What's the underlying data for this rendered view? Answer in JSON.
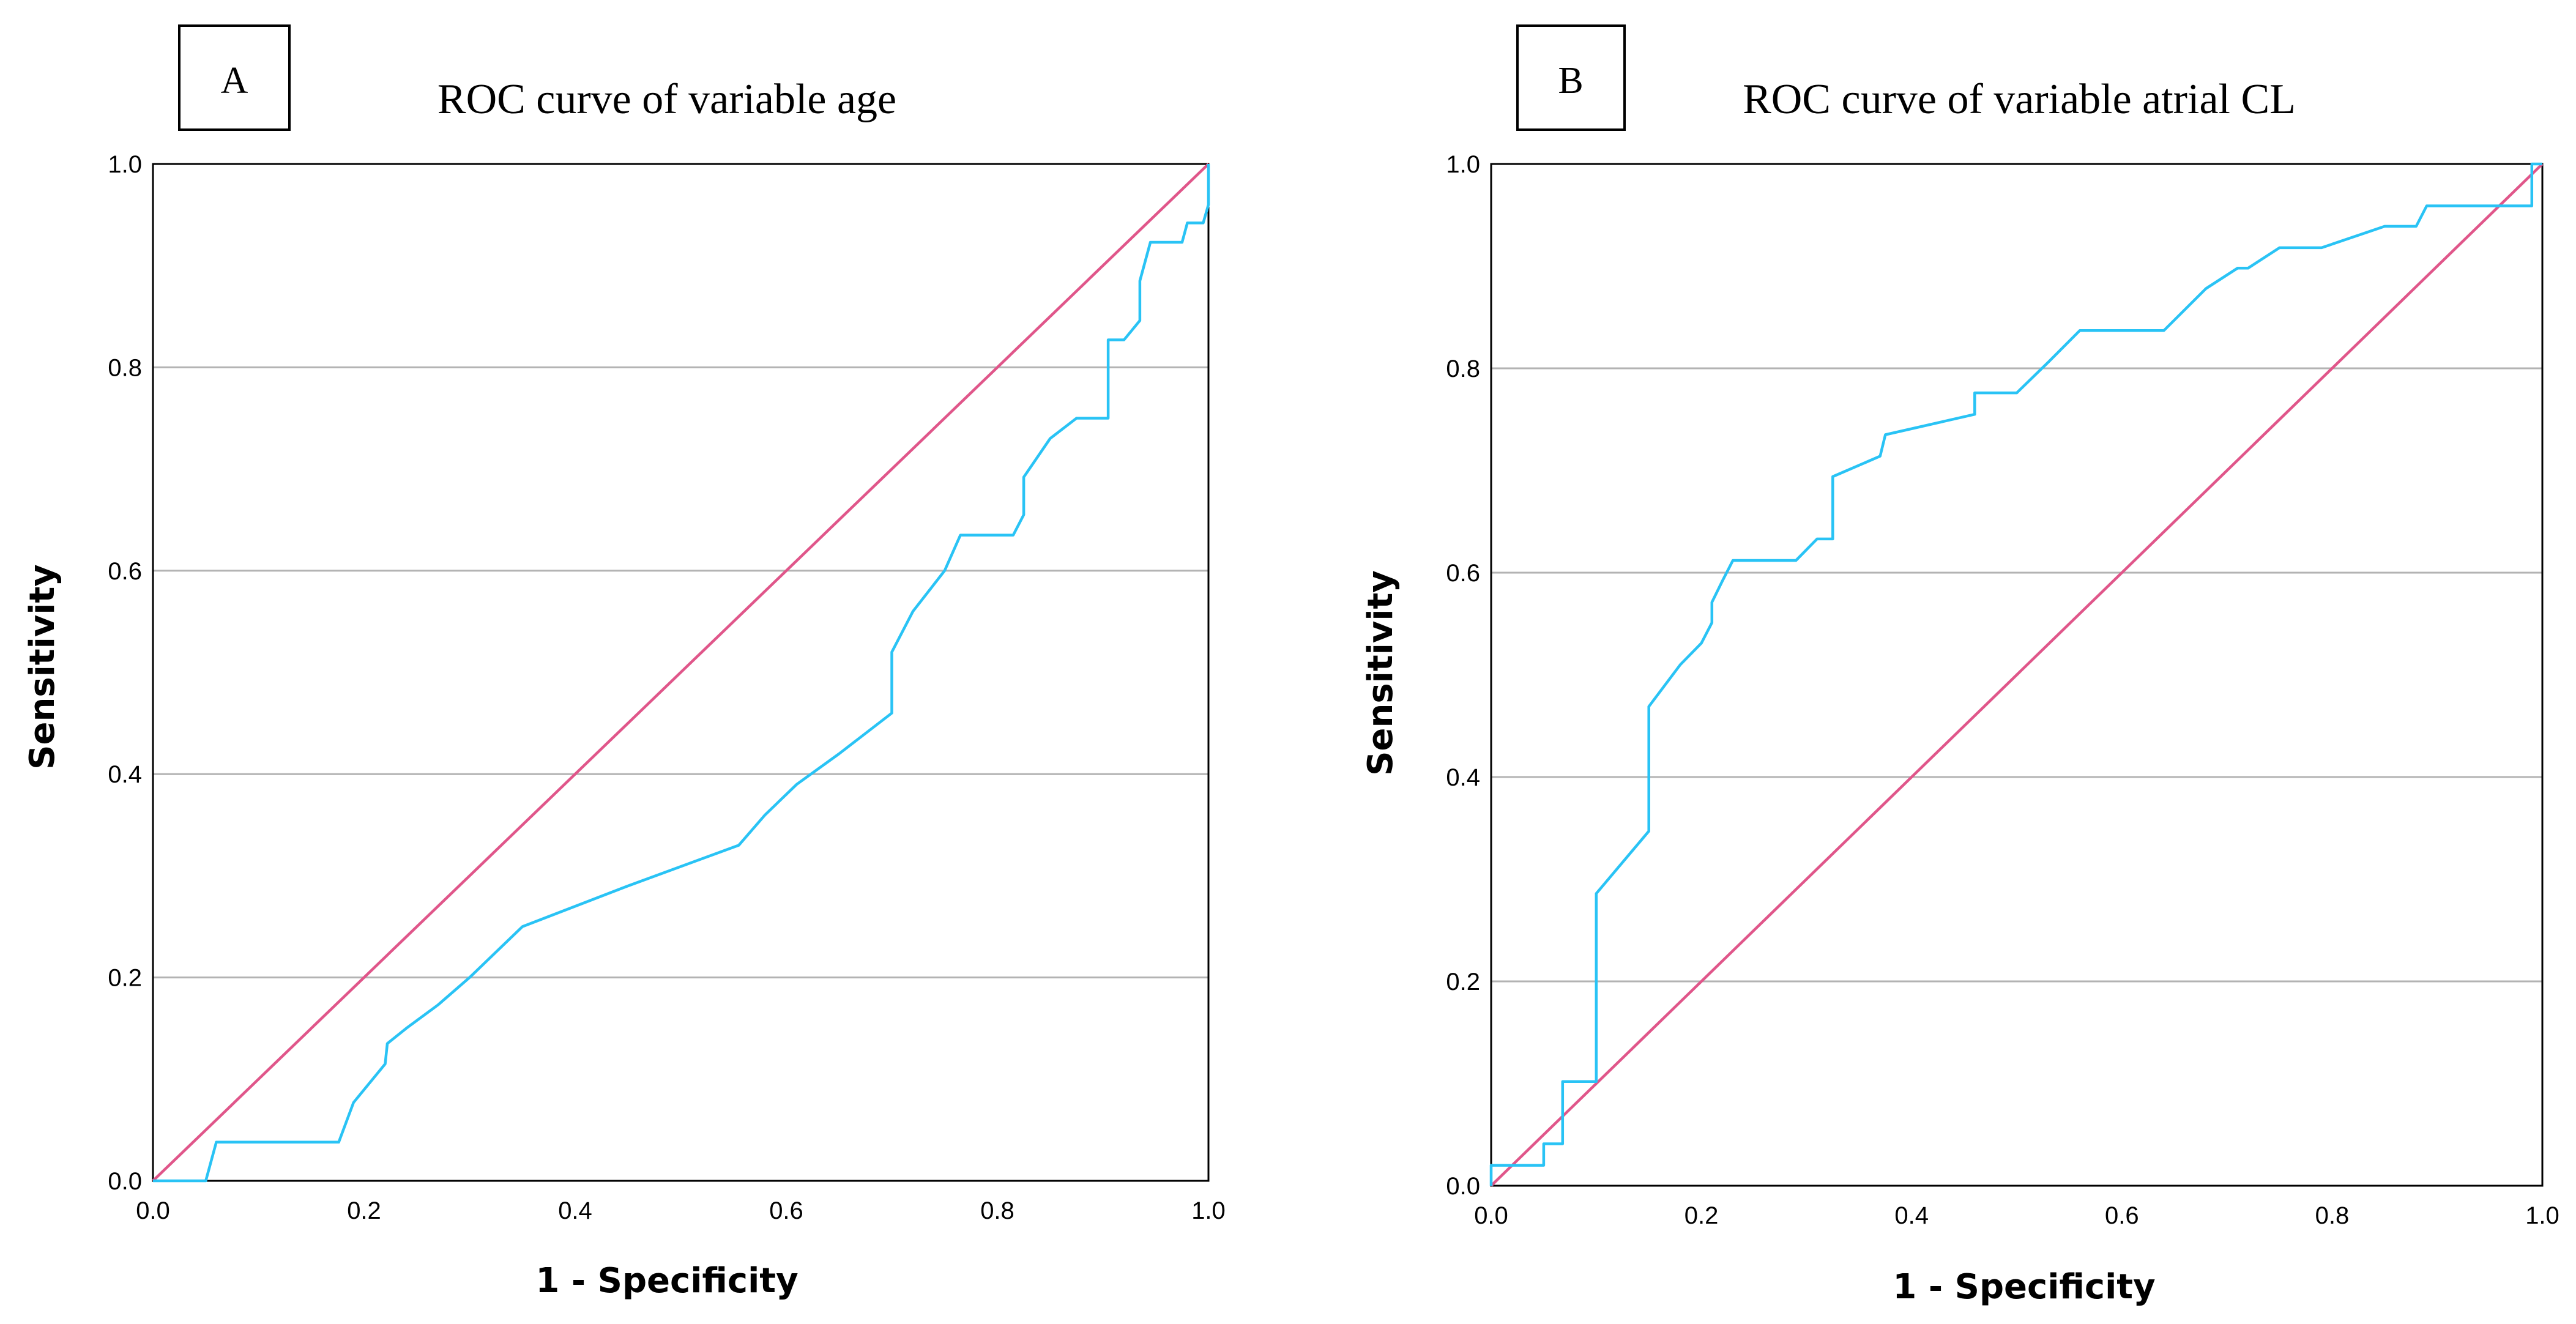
{
  "colors": {
    "roc": "#29c3f5",
    "reference": "#e0568a",
    "grid": "#b3b3b3"
  },
  "chart_data": [
    {
      "type": "line",
      "panel_label": "A",
      "title": "ROC curve of variable age",
      "xlabel": "1 - Specificity",
      "ylabel": "Sensitivity",
      "xlim": [
        0,
        1
      ],
      "ylim": [
        0,
        1
      ],
      "x_ticks": [
        "0.0",
        "0.2",
        "0.4",
        "0.6",
        "0.8",
        "1.0"
      ],
      "y_ticks": [
        "0.0",
        "0.2",
        "0.4",
        "0.6",
        "0.8",
        "1.0"
      ],
      "grid": "horizontal",
      "series": [
        {
          "name": "ROC curve",
          "points": [
            [
              0,
              0
            ],
            [
              0.05,
              0
            ],
            [
              0.06,
              0.038
            ],
            [
              0.176,
              0.038
            ],
            [
              0.19,
              0.077
            ],
            [
              0.22,
              0.115
            ],
            [
              0.222,
              0.135
            ],
            [
              0.24,
              0.15
            ],
            [
              0.27,
              0.173
            ],
            [
              0.3,
              0.2
            ],
            [
              0.32,
              0.22
            ],
            [
              0.35,
              0.25
            ],
            [
              0.45,
              0.29
            ],
            [
              0.555,
              0.33
            ],
            [
              0.58,
              0.36
            ],
            [
              0.61,
              0.39
            ],
            [
              0.65,
              0.42
            ],
            [
              0.7,
              0.46
            ],
            [
              0.7,
              0.52
            ],
            [
              0.72,
              0.56
            ],
            [
              0.75,
              0.6
            ],
            [
              0.765,
              0.635
            ],
            [
              0.815,
              0.635
            ],
            [
              0.825,
              0.655
            ],
            [
              0.825,
              0.692
            ],
            [
              0.85,
              0.73
            ],
            [
              0.875,
              0.75
            ],
            [
              0.905,
              0.75
            ],
            [
              0.905,
              0.827
            ],
            [
              0.92,
              0.827
            ],
            [
              0.935,
              0.846
            ],
            [
              0.935,
              0.885
            ],
            [
              0.945,
              0.923
            ],
            [
              0.975,
              0.923
            ],
            [
              0.98,
              0.942
            ],
            [
              0.995,
              0.942
            ],
            [
              1,
              0.96
            ],
            [
              1,
              1
            ]
          ]
        },
        {
          "name": "Reference line",
          "points": [
            [
              0,
              0
            ],
            [
              1,
              1
            ]
          ]
        }
      ]
    },
    {
      "type": "line",
      "panel_label": "B",
      "title": "ROC curve of variable atrial CL",
      "xlabel": "1 - Specificity",
      "ylabel": "Sensitivity",
      "xlim": [
        0,
        1
      ],
      "ylim": [
        0,
        1
      ],
      "x_ticks": [
        "0.0",
        "0.2",
        "0.4",
        "0.6",
        "0.8",
        "1.0"
      ],
      "y_ticks": [
        "0.0",
        "0.2",
        "0.4",
        "0.6",
        "0.8",
        "1.0"
      ],
      "grid": "horizontal",
      "series": [
        {
          "name": "ROC curve",
          "points": [
            [
              0,
              0
            ],
            [
              0,
              0.02
            ],
            [
              0.05,
              0.02
            ],
            [
              0.05,
              0.041
            ],
            [
              0.068,
              0.041
            ],
            [
              0.068,
              0.102
            ],
            [
              0.1,
              0.102
            ],
            [
              0.1,
              0.286
            ],
            [
              0.15,
              0.347
            ],
            [
              0.15,
              0.469
            ],
            [
              0.18,
              0.51
            ],
            [
              0.2,
              0.531
            ],
            [
              0.21,
              0.551
            ],
            [
              0.21,
              0.571
            ],
            [
              0.22,
              0.592
            ],
            [
              0.23,
              0.612
            ],
            [
              0.29,
              0.612
            ],
            [
              0.31,
              0.633
            ],
            [
              0.325,
              0.633
            ],
            [
              0.325,
              0.694
            ],
            [
              0.37,
              0.714
            ],
            [
              0.375,
              0.735
            ],
            [
              0.46,
              0.755
            ],
            [
              0.46,
              0.776
            ],
            [
              0.5,
              0.776
            ],
            [
              0.53,
              0.806
            ],
            [
              0.56,
              0.837
            ],
            [
              0.64,
              0.837
            ],
            [
              0.68,
              0.878
            ],
            [
              0.71,
              0.898
            ],
            [
              0.72,
              0.898
            ],
            [
              0.75,
              0.918
            ],
            [
              0.79,
              0.918
            ],
            [
              0.85,
              0.939
            ],
            [
              0.88,
              0.939
            ],
            [
              0.89,
              0.959
            ],
            [
              0.99,
              0.959
            ],
            [
              0.99,
              1
            ],
            [
              1,
              1
            ]
          ]
        },
        {
          "name": "Reference line",
          "points": [
            [
              0,
              0
            ],
            [
              1,
              1
            ]
          ]
        }
      ]
    }
  ]
}
